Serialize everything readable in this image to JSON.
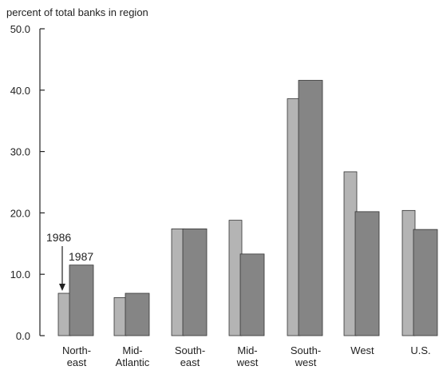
{
  "chart_data": {
    "type": "bar",
    "ylabel": "percent of total banks in region",
    "ylim": [
      0,
      50
    ],
    "yticks": [
      "0.0",
      "10.0",
      "20.0",
      "30.0",
      "40.0",
      "50.0"
    ],
    "categories": [
      [
        "North-",
        "east"
      ],
      [
        "Mid-",
        "Atlantic"
      ],
      [
        "South-",
        "east"
      ],
      [
        "Mid-",
        "west"
      ],
      [
        "South-",
        "west"
      ],
      [
        "West"
      ],
      [
        "U.S."
      ]
    ],
    "series": [
      {
        "name": "1986",
        "values": [
          6.9,
          6.2,
          17.4,
          18.8,
          38.6,
          26.7,
          20.4
        ],
        "color": "#b4b4b4"
      },
      {
        "name": "1987",
        "values": [
          11.5,
          6.9,
          17.4,
          13.3,
          41.6,
          20.2,
          17.3
        ],
        "color": "#858585"
      }
    ],
    "annotations": [
      "1986",
      "1987"
    ],
    "grid": false,
    "legend": "none"
  }
}
